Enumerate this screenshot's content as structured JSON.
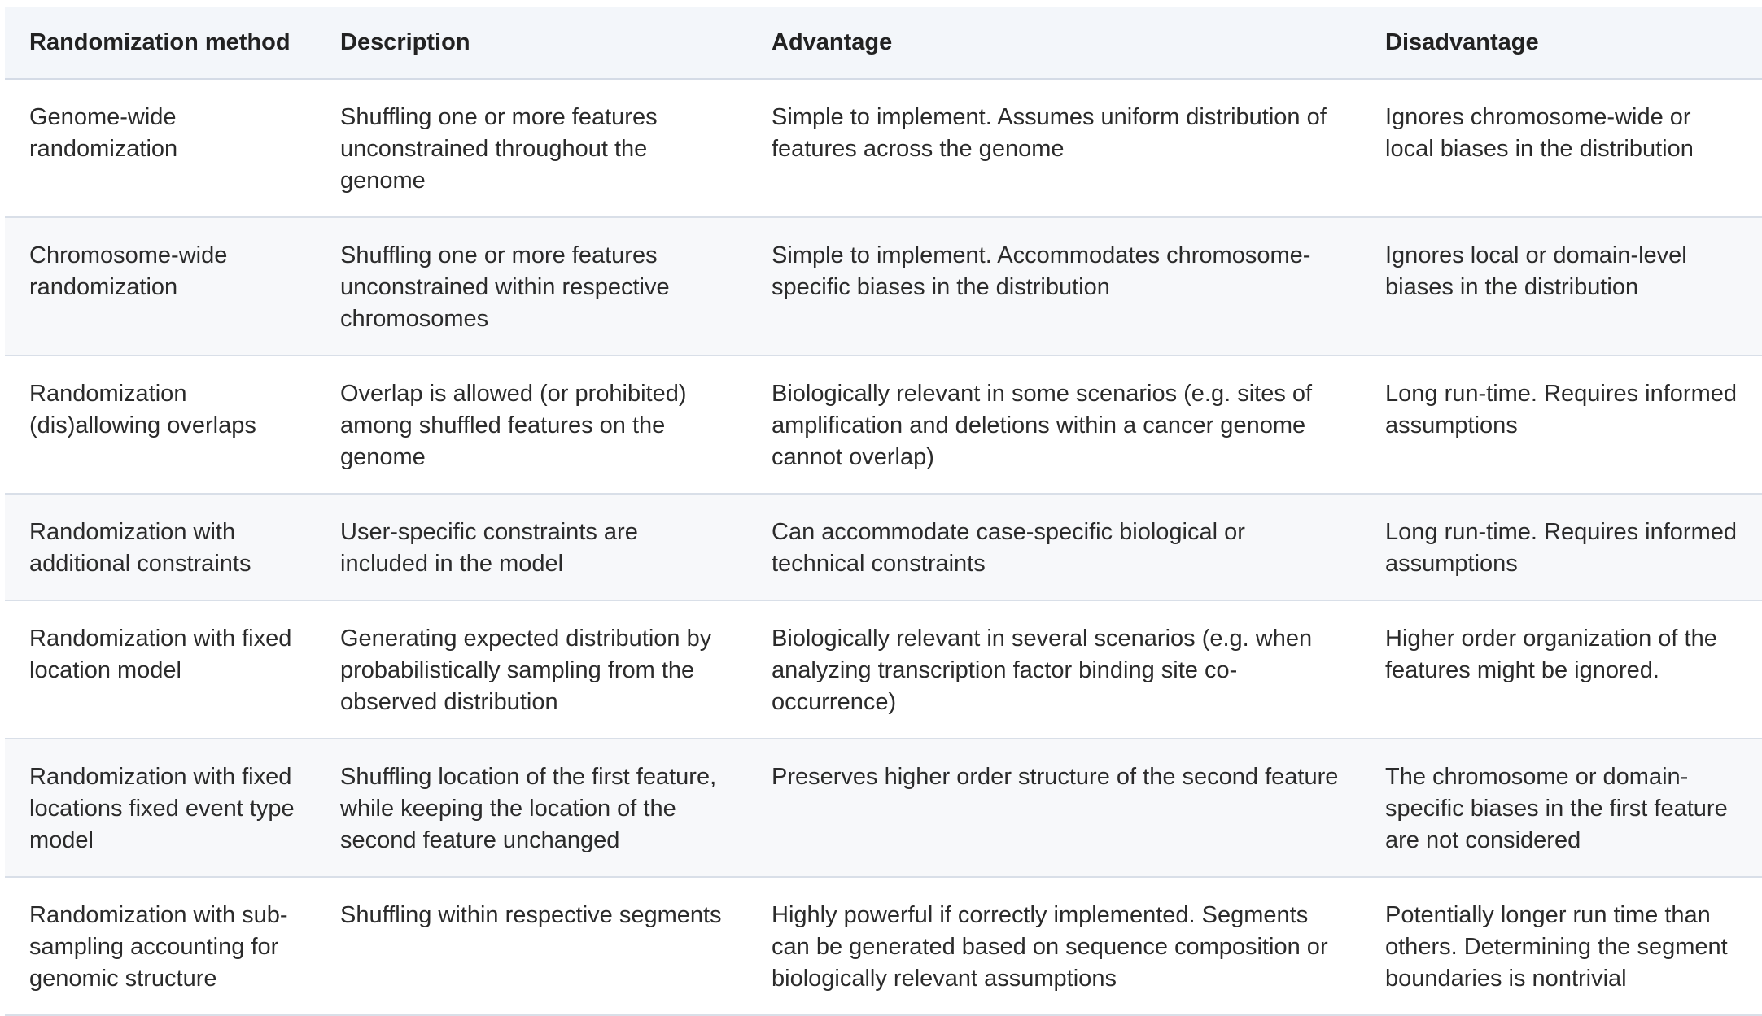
{
  "table": {
    "headers": [
      "Randomization method",
      "Description",
      "Advantage",
      "Disadvantage"
    ],
    "rows": [
      {
        "method": "Genome-wide randomization",
        "description": "Shuffling one or more features unconstrained throughout the genome",
        "advantage": "Simple to implement. Assumes uniform distribution of features across the genome",
        "disadvantage": "Ignores chromosome-wide or local biases in the distribution"
      },
      {
        "method": "Chromosome-wide randomization",
        "description": "Shuffling one or more features unconstrained within respective chromosomes",
        "advantage": "Simple to implement. Accommodates chromosome-specific biases in the distribution",
        "disadvantage": "Ignores local or domain-level biases in the distribution"
      },
      {
        "method": "Randomization (dis)allowing overlaps",
        "description": "Overlap is allowed (or prohibited) among shuffled features on the genome",
        "advantage": "Biologically relevant in some scenarios (e.g. sites of amplification and deletions within a cancer genome cannot overlap)",
        "disadvantage": "Long run-time. Requires informed assumptions"
      },
      {
        "method": "Randomization with additional constraints",
        "description": "User-specific constraints are included in the model",
        "advantage": "Can accommodate case-specific biological or technical constraints",
        "disadvantage": "Long run-time. Requires informed assumptions"
      },
      {
        "method": "Randomization with fixed location model",
        "description": "Generating expected distribution by probabilistically sampling from the observed distribution",
        "advantage": "Biologically relevant in several scenarios (e.g. when analyzing transcription factor binding site co-occurrence)",
        "disadvantage": "Higher order organization of the features might be ignored."
      },
      {
        "method": "Randomization with fixed locations fixed event type model",
        "description": "Shuffling location of the first feature, while keeping the location of the second feature unchanged",
        "advantage": "Preserves higher order structure of the second feature",
        "disadvantage": "The chromosome or domain-specific biases in the first feature are not considered"
      },
      {
        "method": "Randomization with sub-sampling accounting for genomic structure",
        "description": "Shuffling within respective segments",
        "advantage": "Highly powerful if correctly implemented. Segments can be generated based on sequence composition or biologically relevant assumptions",
        "disadvantage": "Potentially longer run time than others. Determining the segment boundaries is nontrivial"
      }
    ]
  }
}
